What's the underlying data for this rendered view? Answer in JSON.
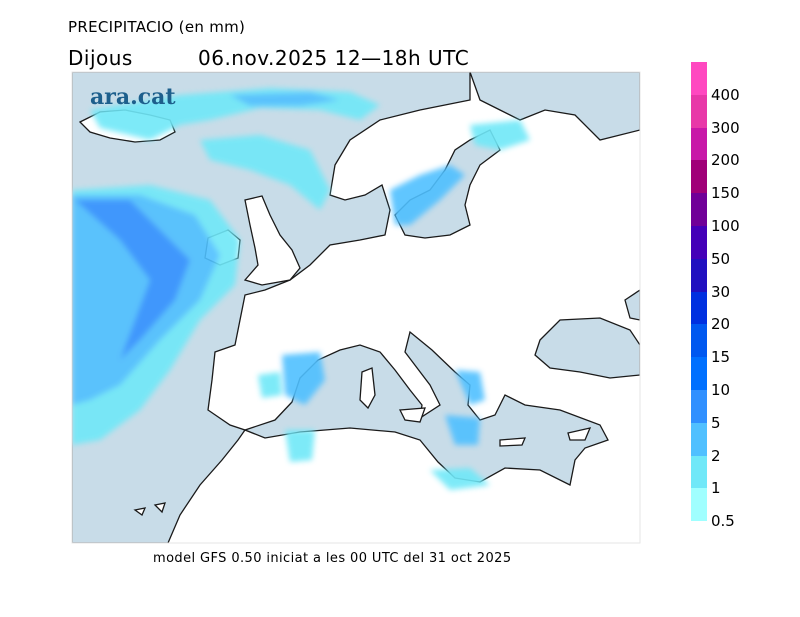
{
  "header": {
    "title": "PRECIPITACIO (en mm)",
    "day": "Dijous",
    "datetime": "06.nov.2025  12—18h  UTC"
  },
  "logo": "ara.cat",
  "footer": "model GFS 0.50 iniciat a les 00 UTC del 31 oct 2025",
  "legend": {
    "labels": [
      "400",
      "300",
      "200",
      "150",
      "100",
      "50",
      "30",
      "20",
      "15",
      "10",
      "5",
      "2",
      "1",
      "0.5"
    ],
    "colors_top_to_bottom": [
      "#ff48c0",
      "#e838a8",
      "#c818a8",
      "#a00078",
      "#700098",
      "#4400b8",
      "#2010c0",
      "#0030e0",
      "#0058f0",
      "#0070ff",
      "#3090ff",
      "#50c0ff",
      "#70e8f8",
      "#a0ffff"
    ]
  },
  "colors": {
    "sea": "#c8dce8",
    "land": "#ffffff",
    "coast": "#1a1a1a"
  }
}
